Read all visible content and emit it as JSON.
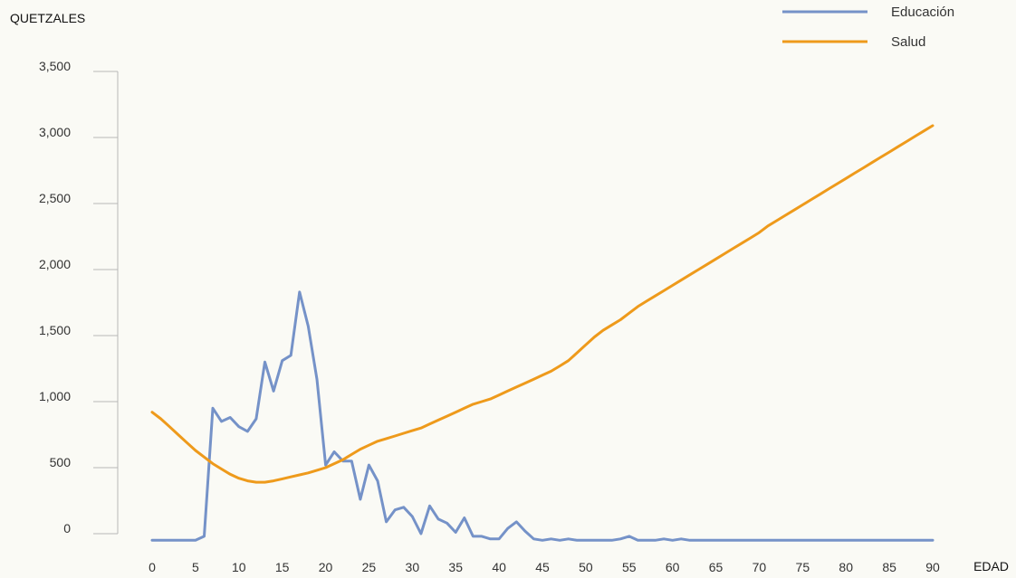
{
  "chart_data": {
    "type": "line",
    "title": "",
    "ylabel": "QUETZALES",
    "xlabel": "EDAD",
    "xlim": [
      0,
      90
    ],
    "ylim": [
      0,
      3500
    ],
    "x_ticks": [
      0,
      5,
      10,
      15,
      20,
      25,
      30,
      35,
      40,
      45,
      50,
      55,
      60,
      65,
      70,
      75,
      80,
      85,
      90
    ],
    "y_ticks": [
      0,
      500,
      1000,
      1500,
      2000,
      2500,
      3000,
      3500
    ],
    "y_tick_labels": [
      "0",
      "500",
      "1,000",
      "1,500",
      "2,000",
      "2,500",
      "3,000",
      "3,500"
    ],
    "grid": false,
    "legend_position": "top-right",
    "series": [
      {
        "name": "Educación",
        "color": "#7592c8",
        "x": [
          0,
          1,
          2,
          3,
          4,
          5,
          6,
          7,
          8,
          9,
          10,
          11,
          12,
          13,
          14,
          15,
          16,
          17,
          18,
          19,
          20,
          21,
          22,
          23,
          24,
          25,
          26,
          27,
          28,
          29,
          30,
          31,
          32,
          33,
          34,
          35,
          36,
          37,
          38,
          39,
          40,
          41,
          42,
          43,
          44,
          45,
          46,
          47,
          48,
          49,
          50,
          51,
          52,
          53,
          54,
          55,
          56,
          57,
          58,
          59,
          60,
          61,
          62,
          63,
          64,
          65,
          66,
          67,
          68,
          69,
          70,
          71,
          72,
          73,
          74,
          75,
          76,
          77,
          78,
          79,
          80,
          81,
          82,
          83,
          84,
          85,
          86,
          87,
          88,
          89,
          90
        ],
        "values": [
          -50,
          -50,
          -50,
          -50,
          -50,
          -50,
          -20,
          950,
          850,
          880,
          810,
          775,
          870,
          1300,
          1080,
          1310,
          1350,
          1830,
          1570,
          1170,
          520,
          620,
          550,
          550,
          260,
          520,
          400,
          90,
          180,
          200,
          130,
          0,
          210,
          110,
          80,
          10,
          120,
          -20,
          -20,
          -40,
          -40,
          40,
          90,
          20,
          -40,
          -50,
          -40,
          -50,
          -40,
          -50,
          -50,
          -50,
          -50,
          -50,
          -40,
          -20,
          -50,
          -50,
          -50,
          -40,
          -50,
          -40,
          -50,
          -50,
          -50,
          -50,
          -50,
          -50,
          -50,
          -50,
          -50,
          -50,
          -50,
          -50,
          -50,
          -50,
          -50,
          -50,
          -50,
          -50,
          -50,
          -50,
          -50,
          -50,
          -50,
          -50,
          -50,
          -50,
          -50,
          -50,
          -50
        ]
      },
      {
        "name": "Salud",
        "color": "#ee9a1b",
        "x": [
          0,
          1,
          2,
          3,
          4,
          5,
          6,
          7,
          8,
          9,
          10,
          11,
          12,
          13,
          14,
          15,
          16,
          17,
          18,
          19,
          20,
          21,
          22,
          23,
          24,
          25,
          26,
          27,
          28,
          29,
          30,
          31,
          32,
          33,
          34,
          35,
          36,
          37,
          38,
          39,
          40,
          41,
          42,
          43,
          44,
          45,
          46,
          47,
          48,
          49,
          50,
          51,
          52,
          53,
          54,
          55,
          56,
          57,
          58,
          59,
          60,
          61,
          62,
          63,
          64,
          65,
          66,
          67,
          68,
          69,
          70,
          71,
          72,
          73,
          74,
          75,
          76,
          77,
          78,
          79,
          80,
          81,
          82,
          83,
          84,
          85,
          86,
          87,
          88,
          89,
          90
        ],
        "values": [
          920,
          870,
          810,
          750,
          690,
          630,
          580,
          530,
          490,
          450,
          420,
          400,
          390,
          390,
          400,
          415,
          430,
          445,
          460,
          480,
          500,
          530,
          560,
          600,
          640,
          670,
          700,
          720,
          740,
          760,
          780,
          800,
          830,
          860,
          890,
          920,
          950,
          980,
          1000,
          1020,
          1050,
          1080,
          1110,
          1140,
          1170,
          1200,
          1230,
          1270,
          1310,
          1370,
          1430,
          1490,
          1540,
          1580,
          1620,
          1670,
          1720,
          1760,
          1800,
          1840,
          1880,
          1920,
          1960,
          2000,
          2040,
          2080,
          2120,
          2160,
          2200,
          2240,
          2280,
          2330,
          2370,
          2410,
          2450,
          2490,
          2530,
          2570,
          2610,
          2650,
          2690,
          2730,
          2770,
          2810,
          2850,
          2890,
          2930,
          2970,
          3010,
          3050,
          3090
        ]
      }
    ]
  }
}
